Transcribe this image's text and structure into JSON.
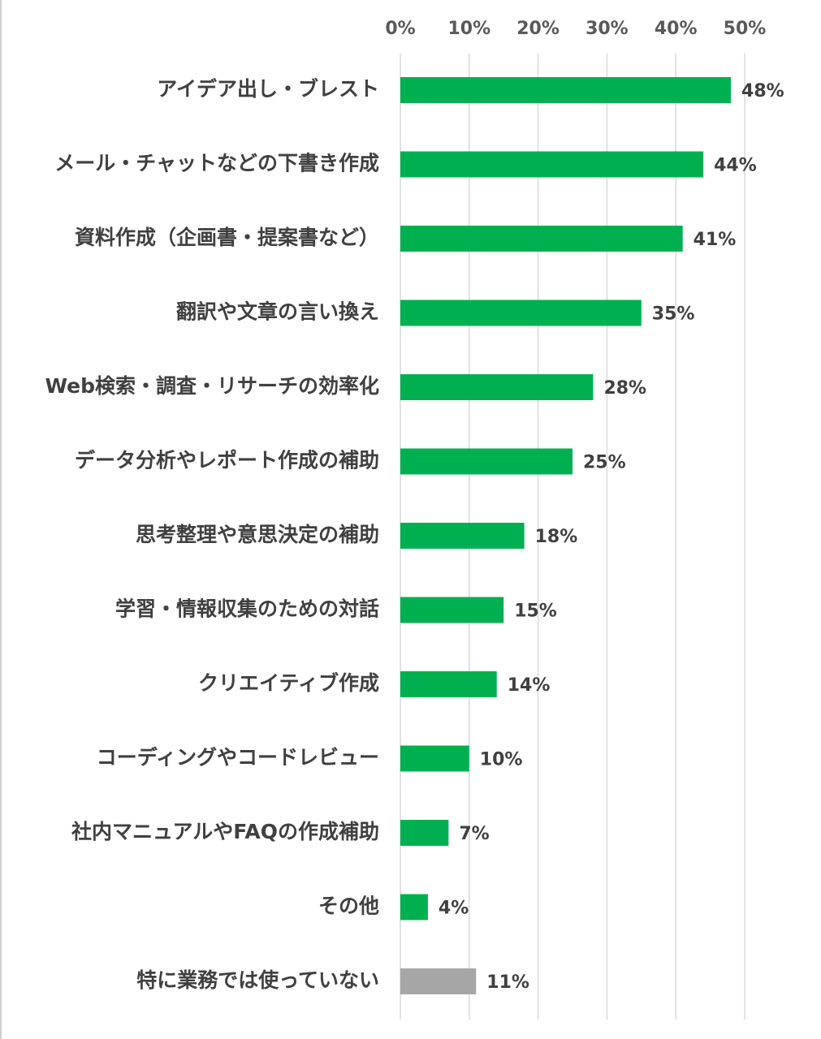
{
  "chart_data": {
    "type": "bar",
    "orientation": "horizontal",
    "title": "",
    "xlabel": "",
    "ylabel": "",
    "xlim": [
      0,
      50
    ],
    "x_ticks": [
      0,
      10,
      20,
      30,
      40,
      50
    ],
    "x_tick_labels": [
      "0%",
      "10%",
      "20%",
      "30%",
      "40%",
      "50%"
    ],
    "x_axis_position": "top",
    "grid": true,
    "legend": "none",
    "categories": [
      "アイデア出し・ブレスト",
      "メール・チャットなどの下書き作成",
      "資料作成（企画書・提案書など）",
      "翻訳や文章の言い換え",
      "Web検索・調査・リサーチの効率化",
      "データ分析やレポート作成の補助",
      "思考整理や意思決定の補助",
      "学習・情報収集のための対話",
      "クリエイティブ作成",
      "コーディングやコードレビュー",
      "社内マニュアルやFAQの作成補助",
      "その他",
      "特に業務では使っていない"
    ],
    "values": [
      48,
      44,
      41,
      35,
      28,
      25,
      18,
      15,
      14,
      10,
      7,
      4,
      11
    ],
    "value_labels": [
      "48%",
      "44%",
      "41%",
      "35%",
      "28%",
      "25%",
      "18%",
      "15%",
      "14%",
      "10%",
      "7%",
      "4%",
      "11%"
    ],
    "bar_colors": [
      "#00b050",
      "#00b050",
      "#00b050",
      "#00b050",
      "#00b050",
      "#00b050",
      "#00b050",
      "#00b050",
      "#00b050",
      "#00b050",
      "#00b050",
      "#00b050",
      "#a6a6a6"
    ],
    "colors": {
      "primary": "#00b050",
      "secondary": "#a6a6a6",
      "gridline": "#d9d9d9",
      "label_text": "#404040",
      "tick_text": "#595959"
    }
  }
}
